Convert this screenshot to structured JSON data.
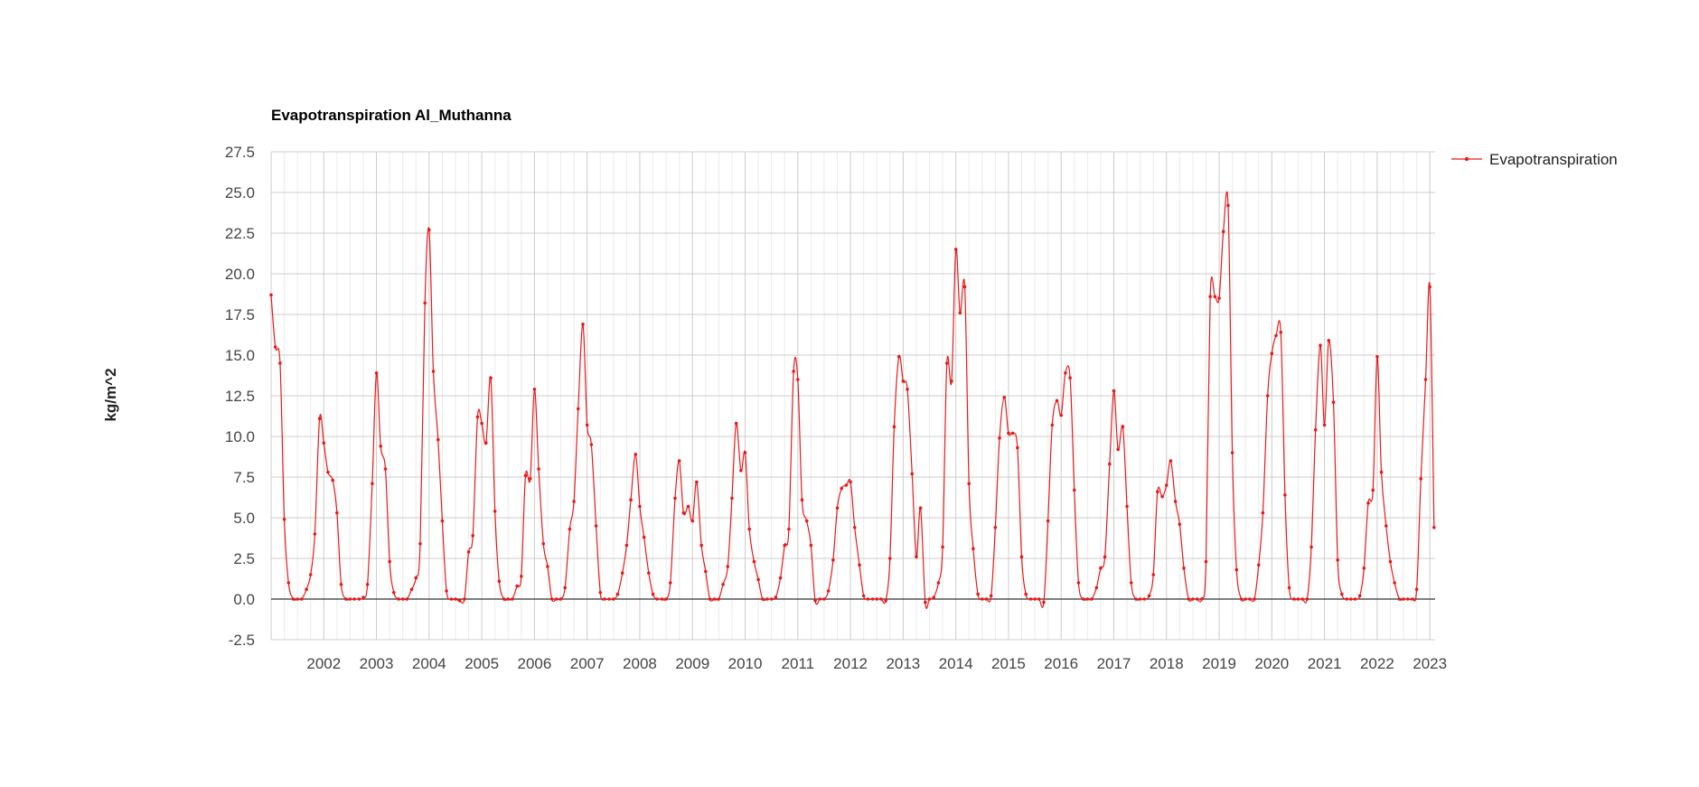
{
  "chart_data": {
    "type": "line",
    "title": "Evapotranspiration Al_Muthanna",
    "ylabel": "kg/m^2",
    "xlabel": "",
    "ylim": [
      -2.5,
      27.5
    ],
    "yticks": [
      "-2.5",
      "0.0",
      "2.5",
      "5.0",
      "7.5",
      "10.0",
      "12.5",
      "15.0",
      "17.5",
      "20.0",
      "22.5",
      "25.0",
      "27.5"
    ],
    "xlim": [
      2001.0,
      2023.1
    ],
    "xticks": [
      "2002",
      "2003",
      "2004",
      "2005",
      "2006",
      "2007",
      "2008",
      "2009",
      "2010",
      "2011",
      "2012",
      "2013",
      "2014",
      "2015",
      "2016",
      "2017",
      "2018",
      "2019",
      "2020",
      "2021",
      "2022",
      "2023"
    ],
    "grid": true,
    "legend_position": "top-right",
    "line_color": "#e8191a",
    "series": [
      {
        "name": "Evapotranspiration",
        "x": [
          2001.0,
          2001.08,
          2001.17,
          2001.25,
          2001.33,
          2001.42,
          2001.5,
          2001.58,
          2001.67,
          2001.75,
          2001.83,
          2001.92,
          2002.0,
          2002.08,
          2002.17,
          2002.25,
          2002.33,
          2002.42,
          2002.5,
          2002.58,
          2002.67,
          2002.75,
          2002.83,
          2002.92,
          2003.0,
          2003.08,
          2003.17,
          2003.25,
          2003.33,
          2003.42,
          2003.5,
          2003.58,
          2003.67,
          2003.75,
          2003.83,
          2003.92,
          2004.0,
          2004.08,
          2004.17,
          2004.25,
          2004.33,
          2004.42,
          2004.5,
          2004.58,
          2004.67,
          2004.75,
          2004.83,
          2004.92,
          2005.0,
          2005.08,
          2005.17,
          2005.25,
          2005.33,
          2005.42,
          2005.5,
          2005.58,
          2005.67,
          2005.75,
          2005.83,
          2005.92,
          2006.0,
          2006.08,
          2006.17,
          2006.25,
          2006.33,
          2006.42,
          2006.5,
          2006.58,
          2006.67,
          2006.75,
          2006.83,
          2006.92,
          2007.0,
          2007.08,
          2007.17,
          2007.25,
          2007.33,
          2007.42,
          2007.5,
          2007.58,
          2007.67,
          2007.75,
          2007.83,
          2007.92,
          2008.0,
          2008.08,
          2008.17,
          2008.25,
          2008.33,
          2008.42,
          2008.5,
          2008.58,
          2008.67,
          2008.75,
          2008.83,
          2008.92,
          2009.0,
          2009.08,
          2009.17,
          2009.25,
          2009.33,
          2009.42,
          2009.5,
          2009.58,
          2009.67,
          2009.75,
          2009.83,
          2009.92,
          2010.0,
          2010.08,
          2010.17,
          2010.25,
          2010.33,
          2010.42,
          2010.5,
          2010.58,
          2010.67,
          2010.75,
          2010.83,
          2010.92,
          2011.0,
          2011.08,
          2011.17,
          2011.25,
          2011.33,
          2011.42,
          2011.5,
          2011.58,
          2011.67,
          2011.75,
          2011.83,
          2011.92,
          2012.0,
          2012.08,
          2012.17,
          2012.25,
          2012.33,
          2012.42,
          2012.5,
          2012.58,
          2012.67,
          2012.75,
          2012.83,
          2012.92,
          2013.0,
          2013.08,
          2013.17,
          2013.25,
          2013.33,
          2013.42,
          2013.5,
          2013.58,
          2013.67,
          2013.75,
          2013.83,
          2013.92,
          2014.0,
          2014.08,
          2014.17,
          2014.25,
          2014.33,
          2014.42,
          2014.5,
          2014.58,
          2014.67,
          2014.75,
          2014.83,
          2014.92,
          2015.0,
          2015.08,
          2015.17,
          2015.25,
          2015.33,
          2015.42,
          2015.5,
          2015.58,
          2015.67,
          2015.75,
          2015.83,
          2015.92,
          2016.0,
          2016.08,
          2016.17,
          2016.25,
          2016.33,
          2016.42,
          2016.5,
          2016.58,
          2016.67,
          2016.75,
          2016.83,
          2016.92,
          2017.0,
          2017.08,
          2017.17,
          2017.25,
          2017.33,
          2017.42,
          2017.5,
          2017.58,
          2017.67,
          2017.75,
          2017.83,
          2017.92,
          2018.0,
          2018.08,
          2018.17,
          2018.25,
          2018.33,
          2018.42,
          2018.5,
          2018.58,
          2018.67,
          2018.75,
          2018.83,
          2018.92,
          2019.0,
          2019.08,
          2019.17,
          2019.25,
          2019.33,
          2019.42,
          2019.5,
          2019.58,
          2019.67,
          2019.75,
          2019.83,
          2019.92,
          2020.0,
          2020.08,
          2020.17,
          2020.25,
          2020.33,
          2020.42,
          2020.5,
          2020.58,
          2020.67,
          2020.75,
          2020.83,
          2020.92,
          2021.0,
          2021.08,
          2021.17,
          2021.25,
          2021.33,
          2021.42,
          2021.5,
          2021.58,
          2021.67,
          2021.75,
          2021.83,
          2021.92,
          2022.0,
          2022.08,
          2022.17,
          2022.25,
          2022.33,
          2022.42,
          2022.5,
          2022.58,
          2022.67,
          2022.75,
          2022.83,
          2022.92,
          2023.0,
          2023.08
        ],
        "values": [
          18.7,
          15.5,
          14.5,
          4.9,
          1.0,
          0.0,
          0.0,
          0.0,
          0.6,
          1.5,
          4.0,
          11.1,
          9.6,
          7.8,
          7.3,
          5.3,
          0.9,
          0.0,
          0.0,
          0.0,
          0.0,
          0.1,
          0.9,
          7.1,
          13.9,
          9.4,
          8.0,
          2.3,
          0.4,
          0.0,
          0.0,
          0.0,
          0.6,
          1.3,
          3.4,
          18.2,
          22.7,
          14.0,
          9.8,
          4.8,
          0.5,
          0.0,
          0.0,
          -0.1,
          0.0,
          2.9,
          3.9,
          11.2,
          10.8,
          9.6,
          13.6,
          5.4,
          1.1,
          0.0,
          0.0,
          0.0,
          0.8,
          1.4,
          7.6,
          7.4,
          12.9,
          8.0,
          3.4,
          2.0,
          0.0,
          0.0,
          0.0,
          0.7,
          4.3,
          6.0,
          11.7,
          16.9,
          10.7,
          9.5,
          4.5,
          0.4,
          0.0,
          0.0,
          0.0,
          0.3,
          1.6,
          3.3,
          6.1,
          8.9,
          5.7,
          3.8,
          1.6,
          0.3,
          0.0,
          0.0,
          0.0,
          1.0,
          6.2,
          8.5,
          5.3,
          5.7,
          4.8,
          7.2,
          3.3,
          1.7,
          0.0,
          0.0,
          0.0,
          0.9,
          2.0,
          6.2,
          10.8,
          7.9,
          9.0,
          4.3,
          2.3,
          1.2,
          0.0,
          0.0,
          0.0,
          0.1,
          1.3,
          3.3,
          4.3,
          14.0,
          13.5,
          6.1,
          4.8,
          3.3,
          -0.1,
          0.0,
          0.0,
          0.5,
          2.4,
          5.6,
          6.8,
          7.0,
          7.2,
          4.4,
          2.1,
          0.2,
          0.0,
          0.0,
          0.0,
          0.0,
          -0.1,
          2.5,
          10.6,
          14.9,
          13.4,
          12.9,
          7.7,
          2.6,
          5.6,
          -0.2,
          0.0,
          0.1,
          1.0,
          3.2,
          14.5,
          13.4,
          21.5,
          17.6,
          19.2,
          7.1,
          3.1,
          0.3,
          0.0,
          0.0,
          0.2,
          4.4,
          9.9,
          12.4,
          10.2,
          10.2,
          9.3,
          2.6,
          0.3,
          0.0,
          0.0,
          0.0,
          -0.2,
          4.8,
          10.7,
          12.2,
          11.3,
          13.9,
          13.6,
          6.7,
          1.0,
          0.0,
          0.0,
          0.0,
          0.7,
          1.9,
          2.6,
          8.3,
          12.8,
          9.2,
          10.6,
          5.7,
          1.0,
          0.0,
          0.0,
          0.0,
          0.2,
          1.5,
          6.6,
          6.3,
          7.0,
          8.5,
          6.0,
          4.6,
          1.9,
          0.0,
          0.0,
          0.0,
          0.0,
          2.3,
          18.6,
          18.6,
          18.5,
          22.6,
          24.2,
          9.0,
          1.8,
          0.0,
          0.0,
          0.0,
          0.0,
          2.1,
          5.3,
          12.5,
          15.1,
          16.2,
          16.4,
          6.4,
          0.7,
          0.0,
          0.0,
          0.0,
          0.0,
          3.2,
          10.4,
          15.6,
          10.7,
          15.9,
          12.1,
          2.4,
          0.3,
          0.0,
          0.0,
          0.0,
          0.2,
          1.9,
          5.9,
          6.7,
          14.9,
          7.8,
          4.5,
          2.3,
          1.0,
          0.0,
          0.0,
          0.0,
          0.0,
          0.6,
          7.4,
          13.5,
          19.2,
          4.4
        ]
      }
    ]
  }
}
